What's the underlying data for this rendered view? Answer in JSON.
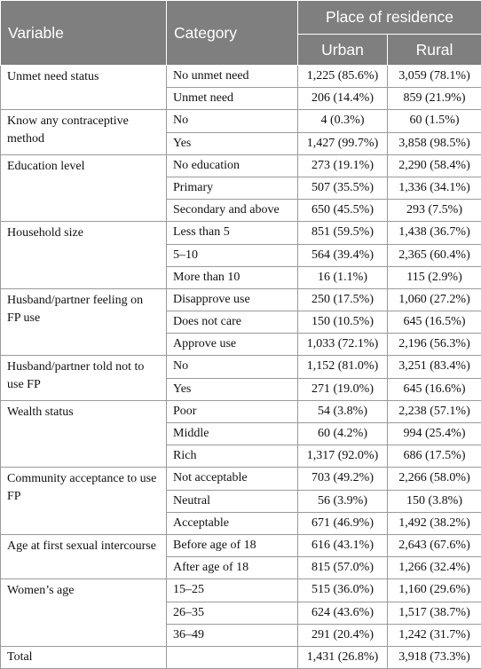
{
  "header": {
    "variable": "Variable",
    "category": "Category",
    "place": "Place of residence",
    "urban": "Urban",
    "rural": "Rural"
  },
  "groups": [
    {
      "variable": "Unmet need status",
      "rows": [
        {
          "category": "No unmet need",
          "urban": "1,225 (85.6%)",
          "rural": "3,059 (78.1%)"
        },
        {
          "category": "Unmet need",
          "urban": "206 (14.4%)",
          "rural": "859 (21.9%)"
        }
      ]
    },
    {
      "variable": "Know any contraceptive method",
      "rows": [
        {
          "category": "No",
          "urban": "4 (0.3%)",
          "rural": "60 (1.5%)"
        },
        {
          "category": "Yes",
          "urban": "1,427 (99.7%)",
          "rural": "3,858 (98.5%)"
        }
      ]
    },
    {
      "variable": "Education level",
      "rows": [
        {
          "category": "No education",
          "urban": "273 (19.1%)",
          "rural": "2,290 (58.4%)"
        },
        {
          "category": "Primary",
          "urban": "507 (35.5%)",
          "rural": "1,336 (34.1%)"
        },
        {
          "category": "Secondary and above",
          "urban": "650 (45.5%)",
          "rural": "293 (7.5%)"
        }
      ]
    },
    {
      "variable": "Household size",
      "rows": [
        {
          "category": "Less than 5",
          "urban": "851 (59.5%)",
          "rural": "1,438 (36.7%)"
        },
        {
          "category": "5–10",
          "urban": "564 (39.4%)",
          "rural": "2,365 (60.4%)"
        },
        {
          "category": "More than 10",
          "urban": "16 (1.1%)",
          "rural": "115 (2.9%)"
        }
      ]
    },
    {
      "variable": "Husband/partner feeling on FP use",
      "rows": [
        {
          "category": "Disapprove use",
          "urban": "250 (17.5%)",
          "rural": "1,060 (27.2%)"
        },
        {
          "category": "Does not care",
          "urban": "150 (10.5%)",
          "rural": "645 (16.5%)"
        },
        {
          "category": "Approve use",
          "urban": "1,033 (72.1%)",
          "rural": "2,196 (56.3%)"
        }
      ]
    },
    {
      "variable": "Husband/partner told not to use FP",
      "rows": [
        {
          "category": "No",
          "urban": "1,152 (81.0%)",
          "rural": "3,251 (83.4%)"
        },
        {
          "category": "Yes",
          "urban": "271 (19.0%)",
          "rural": "645 (16.6%)"
        }
      ]
    },
    {
      "variable": "Wealth status",
      "rows": [
        {
          "category": "Poor",
          "urban": "54 (3.8%)",
          "rural": "2,238 (57.1%)"
        },
        {
          "category": "Middle",
          "urban": "60 (4.2%)",
          "rural": "994 (25.4%)"
        },
        {
          "category": "Rich",
          "urban": "1,317 (92.0%)",
          "rural": "686 (17.5%)"
        }
      ]
    },
    {
      "variable": "Community acceptance to use FP",
      "rows": [
        {
          "category": "Not acceptable",
          "urban": "703 (49.2%)",
          "rural": "2,266 (58.0%)"
        },
        {
          "category": "Neutral",
          "urban": "56 (3.9%)",
          "rural": "150 (3.8%)"
        },
        {
          "category": "Acceptable",
          "urban": "671 (46.9%)",
          "rural": "1,492 (38.2%)"
        }
      ]
    },
    {
      "variable": "Age at first sexual intercourse",
      "rows": [
        {
          "category": "Before age of 18",
          "urban": "616 (43.1%)",
          "rural": "2,643 (67.6%)"
        },
        {
          "category": "After age of 18",
          "urban": "815 (57.0%)",
          "rural": "1,266 (32.4%)"
        }
      ]
    },
    {
      "variable": "Women’s age",
      "rows": [
        {
          "category": "15–25",
          "urban": "515 (36.0%)",
          "rural": "1,160 (29.6%)"
        },
        {
          "category": "26–35",
          "urban": "624 (43.6%)",
          "rural": "1,517 (38.7%)"
        },
        {
          "category": "36–49",
          "urban": "291 (20.4%)",
          "rural": "1,242 (31.7%)"
        }
      ]
    }
  ],
  "total": {
    "label": "Total",
    "category": "",
    "urban": "1,431 (26.8%)",
    "rural": "3,918 (73.3%)"
  }
}
